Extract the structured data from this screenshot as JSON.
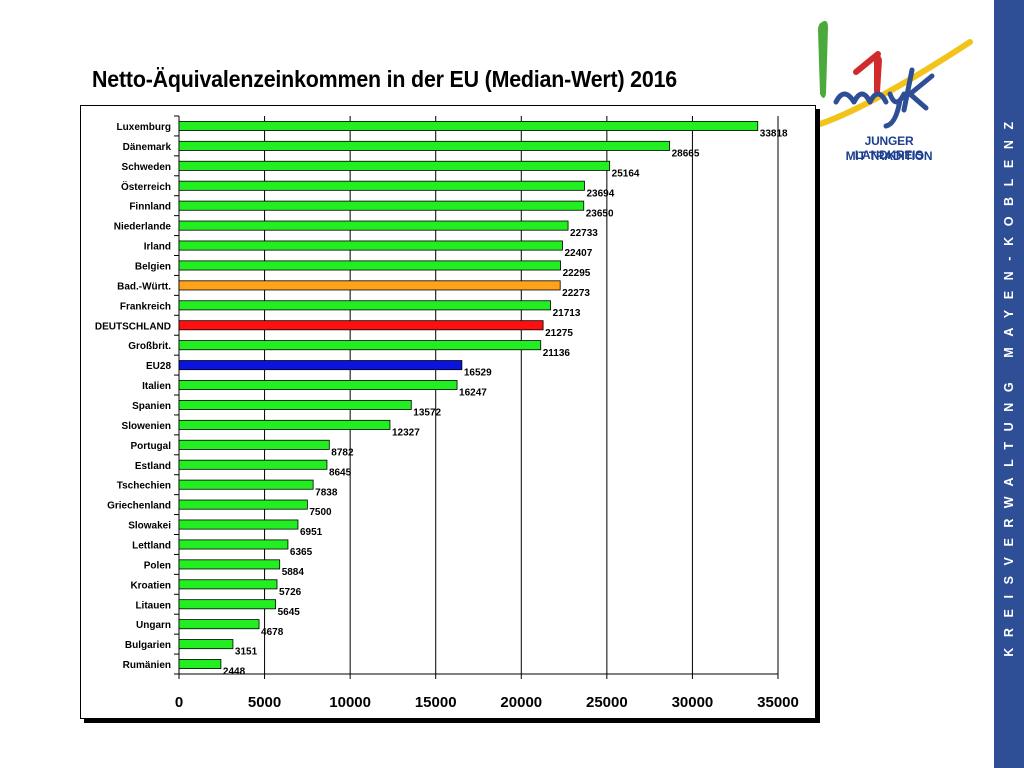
{
  "title": "Netto-Äquivalenzeinkommen in der EU (Median-Wert) 2016",
  "logo": {
    "mark": "myk",
    "line1": "JUNGER LANDKREIS",
    "line2": "MIT TRADITION"
  },
  "side_banner": "KREISVERWALTUNG MAYEN-KOBLENZ",
  "colors": {
    "default_bar": "#22ee22",
    "highlight_bw": "#ffa31a",
    "highlight_de": "#ff1010",
    "highlight_eu": "#0a14dd",
    "side_band": "#2e4e96"
  },
  "chart_data": {
    "type": "bar",
    "orientation": "horizontal",
    "title": "Netto-Äquivalenzeinkommen in der EU (Median-Wert) 2016",
    "xlabel": "",
    "ylabel": "",
    "xlim": [
      0,
      35000
    ],
    "xticks": [
      0,
      5000,
      10000,
      15000,
      20000,
      25000,
      30000,
      35000
    ],
    "grid": true,
    "legend": false,
    "categories": [
      "Luxemburg",
      "Dänemark",
      "Schweden",
      "Österreich",
      "Finnland",
      "Niederlande",
      "Irland",
      "Belgien",
      "Bad.-Württ.",
      "Frankreich",
      "DEUTSCHLAND",
      "Großbrit.",
      "EU28",
      "Italien",
      "Spanien",
      "Slowenien",
      "Portugal",
      "Estland",
      "Tschechien",
      "Griechenland",
      "Slowakei",
      "Lettland",
      "Polen",
      "Kroatien",
      "Litauen",
      "Ungarn",
      "Bulgarien",
      "Rumänien"
    ],
    "values": [
      33818,
      28665,
      25164,
      23694,
      23650,
      22733,
      22407,
      22295,
      22273,
      21713,
      21275,
      21136,
      16529,
      16247,
      13572,
      12327,
      8782,
      8645,
      7838,
      7500,
      6951,
      6365,
      5884,
      5726,
      5645,
      4678,
      3151,
      2448
    ],
    "highlights": {
      "Bad.-Württ.": "#ffa31a",
      "DEUTSCHLAND": "#ff1010",
      "EU28": "#0a14dd"
    }
  }
}
